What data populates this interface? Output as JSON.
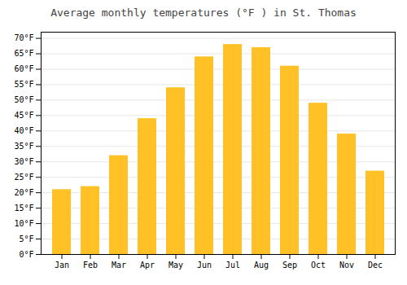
{
  "chart_data": {
    "type": "bar",
    "title": "Average monthly temperatures (°F ) in St. Thomas",
    "categories": [
      "Jan",
      "Feb",
      "Mar",
      "Apr",
      "May",
      "Jun",
      "Jul",
      "Aug",
      "Sep",
      "Oct",
      "Nov",
      "Dec"
    ],
    "values": [
      21,
      22,
      32,
      44,
      54,
      64,
      68,
      67,
      61,
      49,
      39,
      27
    ],
    "color": "#FFC125",
    "ylim": [
      0,
      72
    ],
    "yticks": [
      {
        "value": 0,
        "label": "0°F"
      },
      {
        "value": 5,
        "label": "5°F"
      },
      {
        "value": 10,
        "label": "10°F"
      },
      {
        "value": 15,
        "label": "15°F"
      },
      {
        "value": 20,
        "label": "20°F"
      },
      {
        "value": 25,
        "label": "25°F"
      },
      {
        "value": 30,
        "label": "30°F"
      },
      {
        "value": 35,
        "label": "35°F"
      },
      {
        "value": 40,
        "label": "40°F"
      },
      {
        "value": 45,
        "label": "45°F"
      },
      {
        "value": 50,
        "label": "50°F"
      },
      {
        "value": 55,
        "label": "55°F"
      },
      {
        "value": 60,
        "label": "60°F"
      },
      {
        "value": 65,
        "label": "65°F"
      },
      {
        "value": 70,
        "label": "70°F"
      }
    ],
    "grid": true
  }
}
